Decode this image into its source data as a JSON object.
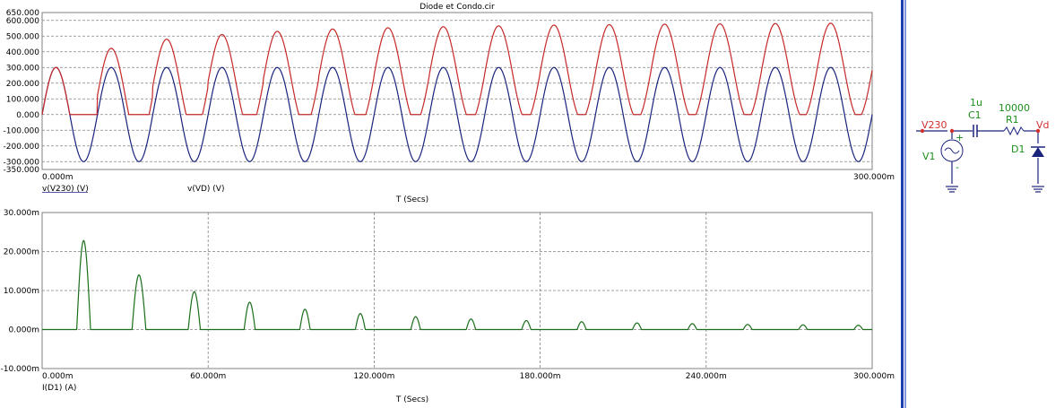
{
  "colors": {
    "v230": "#1a237e",
    "vd": "#c62828",
    "id1": "#1b6d1b",
    "schematic_label": "#1b8f1b",
    "schematic_net": "#d32f2f",
    "schematic_wire": "#1a237e",
    "divider": "#1a3fb3"
  },
  "chart_data": [
    {
      "type": "line",
      "title": "Diode et Condo.cir",
      "xlabel": "T (Secs)",
      "xlim": [
        0,
        300
      ],
      "ylim": [
        -350,
        650
      ],
      "x_ticks": [
        "0.000m",
        "300.000m"
      ],
      "y_ticks": [
        650,
        600,
        500,
        400,
        300,
        200,
        100,
        0,
        -100,
        -200,
        -300,
        -350
      ],
      "y_tick_labels": [
        "650.000",
        "600.000",
        "500.000",
        "400.000",
        "300.000",
        "200.000",
        "100.000",
        "0.000",
        "-100.000",
        "-200.000",
        "-300.000",
        "-350.000"
      ],
      "grid": true,
      "series": [
        {
          "name": "v(V230) (V)",
          "color": "#1a237e",
          "function": "sine",
          "amplitude": 300,
          "frequency_hz": 50,
          "peaks": [
            300,
            300,
            300,
            300,
            300,
            300,
            300,
            300,
            300,
            300,
            300,
            300,
            300,
            300,
            300
          ],
          "troughs": [
            -300,
            -300,
            -300,
            -300,
            -300,
            -300,
            -300,
            -300,
            -300,
            -300,
            -300,
            -300,
            -300,
            -300,
            -300
          ]
        },
        {
          "name": "v(VD) (V)",
          "color": "#c62828",
          "function": "clamped-sine",
          "peaks": [
            300,
            422,
            480,
            510,
            530,
            545,
            553,
            560,
            565,
            570,
            573,
            576,
            578,
            580,
            582
          ],
          "floor": 0
        }
      ]
    },
    {
      "type": "line",
      "xlabel": "T (Secs)",
      "xlim": [
        0,
        300
      ],
      "ylim": [
        -10,
        30
      ],
      "x_ticks": [
        0,
        60,
        120,
        180,
        240,
        300
      ],
      "x_tick_labels": [
        "0.000m",
        "60.000m",
        "120.000m",
        "180.000m",
        "240.000m",
        "300.000m"
      ],
      "y_ticks": [
        30,
        20,
        10,
        0,
        -10
      ],
      "y_tick_labels": [
        "30.000m",
        "20.000m",
        "10.000m",
        "0.000m",
        "-10.000m"
      ],
      "grid": true,
      "series": [
        {
          "name": "I(D1) (A)",
          "color": "#1b6d1b",
          "pulse_peaks_mA": [
            22.8,
            14.0,
            9.7,
            7.0,
            5.2,
            4.1,
            3.3,
            2.7,
            2.3,
            2.0,
            1.7,
            1.5,
            1.3,
            1.2,
            1.1
          ]
        }
      ]
    }
  ],
  "schematic": {
    "v230_label": "V230",
    "v1_label": "V1",
    "plus_sign": "+",
    "minus_sign": "-",
    "c1_value": "1u",
    "c1_label": "C1",
    "r1_value": "10000",
    "r1_label": "R1",
    "vd_label": "Vd",
    "d1_label": "D1"
  }
}
